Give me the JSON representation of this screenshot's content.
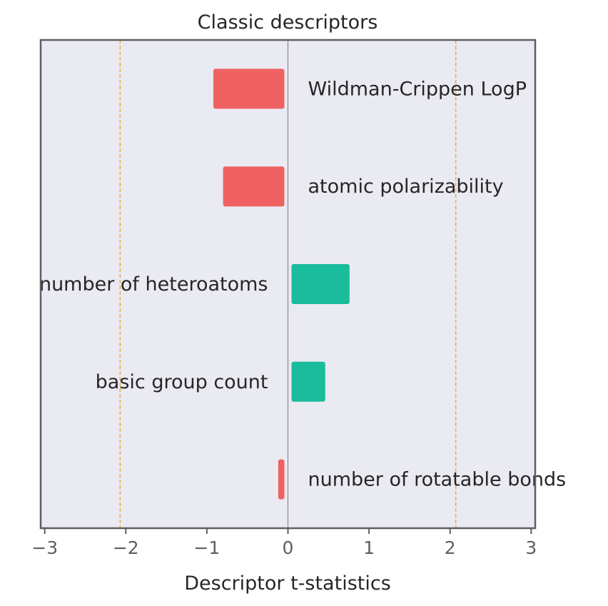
{
  "chart_data": {
    "type": "bar",
    "orientation": "horizontal",
    "title": "Classic descriptors",
    "xlabel": "Descriptor t-statistics",
    "ylabel": "",
    "xlim": [
      -3.05,
      3.05
    ],
    "xticks": [
      -3,
      -2,
      -1,
      0,
      1,
      2,
      3
    ],
    "xtick_labels": [
      "−3",
      "−2",
      "−1",
      "0",
      "1",
      "2",
      "3"
    ],
    "threshold_lines": [
      -2.07,
      2.07
    ],
    "grid": false,
    "categories": [
      "Wildman-Crippen LogP",
      "atomic polarizability",
      "number of heteroatoms",
      "basic group count",
      "number of rotatable bonds"
    ],
    "values": [
      -0.92,
      -0.8,
      0.76,
      0.46,
      -0.12
    ],
    "colors": {
      "negative": "#f06262",
      "positive": "#1abc9c",
      "threshold": "#f5a742",
      "zero_line": "#8c8c8c",
      "plot_background": "#eaeaf2",
      "frame": "#5f5f5f"
    }
  }
}
